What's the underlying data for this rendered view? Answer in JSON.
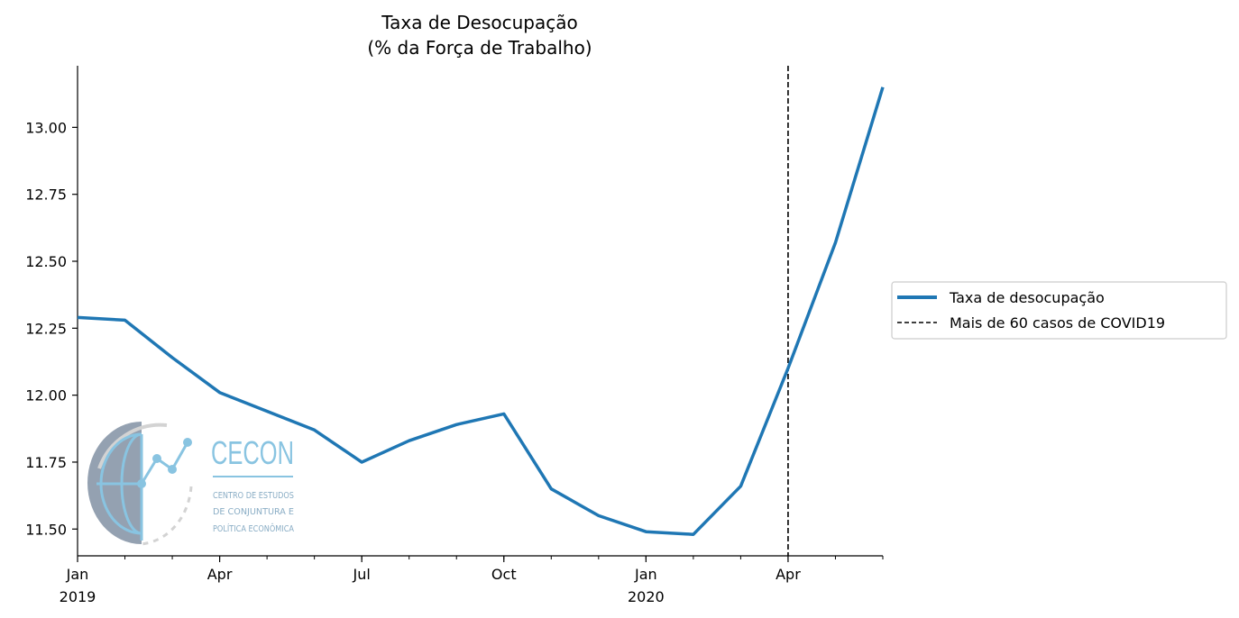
{
  "chart_data": {
    "type": "line",
    "title": [
      "Taxa de Desocupação",
      "(% da Força de Trabalho)"
    ],
    "xlabel": "",
    "ylabel": "",
    "x": [
      "2019-01",
      "2019-02",
      "2019-03",
      "2019-04",
      "2019-05",
      "2019-06",
      "2019-07",
      "2019-08",
      "2019-09",
      "2019-10",
      "2019-11",
      "2019-12",
      "2020-01",
      "2020-02",
      "2020-03",
      "2020-04",
      "2020-05",
      "2020-06"
    ],
    "series": [
      {
        "name": "Taxa de desocupação",
        "color": "#1f77b4",
        "values": [
          12.29,
          12.28,
          12.14,
          12.01,
          11.94,
          11.87,
          11.75,
          11.83,
          11.89,
          11.93,
          11.65,
          11.55,
          11.49,
          11.48,
          11.66,
          12.1,
          12.57,
          13.15
        ]
      }
    ],
    "reference_line": {
      "name": "Mais de 60 casos de COVID19",
      "x": "2020-04",
      "color": "#000000",
      "style": "dashed"
    },
    "ylim": [
      11.4,
      13.23
    ],
    "xlim": [
      "2019-01",
      "2020-06"
    ],
    "yticks": [
      11.5,
      11.75,
      12.0,
      12.25,
      12.5,
      12.75,
      13.0
    ],
    "ytick_labels": [
      "11.50",
      "11.75",
      "12.00",
      "12.25",
      "12.50",
      "12.75",
      "13.00"
    ],
    "xticks_major": [
      {
        "x": "2019-01",
        "label": "Jan",
        "year": "2019"
      },
      {
        "x": "2019-04",
        "label": "Apr",
        "year": ""
      },
      {
        "x": "2019-07",
        "label": "Jul",
        "year": ""
      },
      {
        "x": "2019-10",
        "label": "Oct",
        "year": ""
      },
      {
        "x": "2020-01",
        "label": "Jan",
        "year": "2020"
      },
      {
        "x": "2020-04",
        "label": "Apr",
        "year": ""
      }
    ],
    "grid": false,
    "legend_position": "right"
  },
  "logo": {
    "wordmark": "CECON",
    "lines": [
      "CENTRO DE ESTUDOS",
      "DE CONJUNTURA E",
      "POLÍTICA ECONÔMICA"
    ],
    "color": "#7fbfdf"
  }
}
